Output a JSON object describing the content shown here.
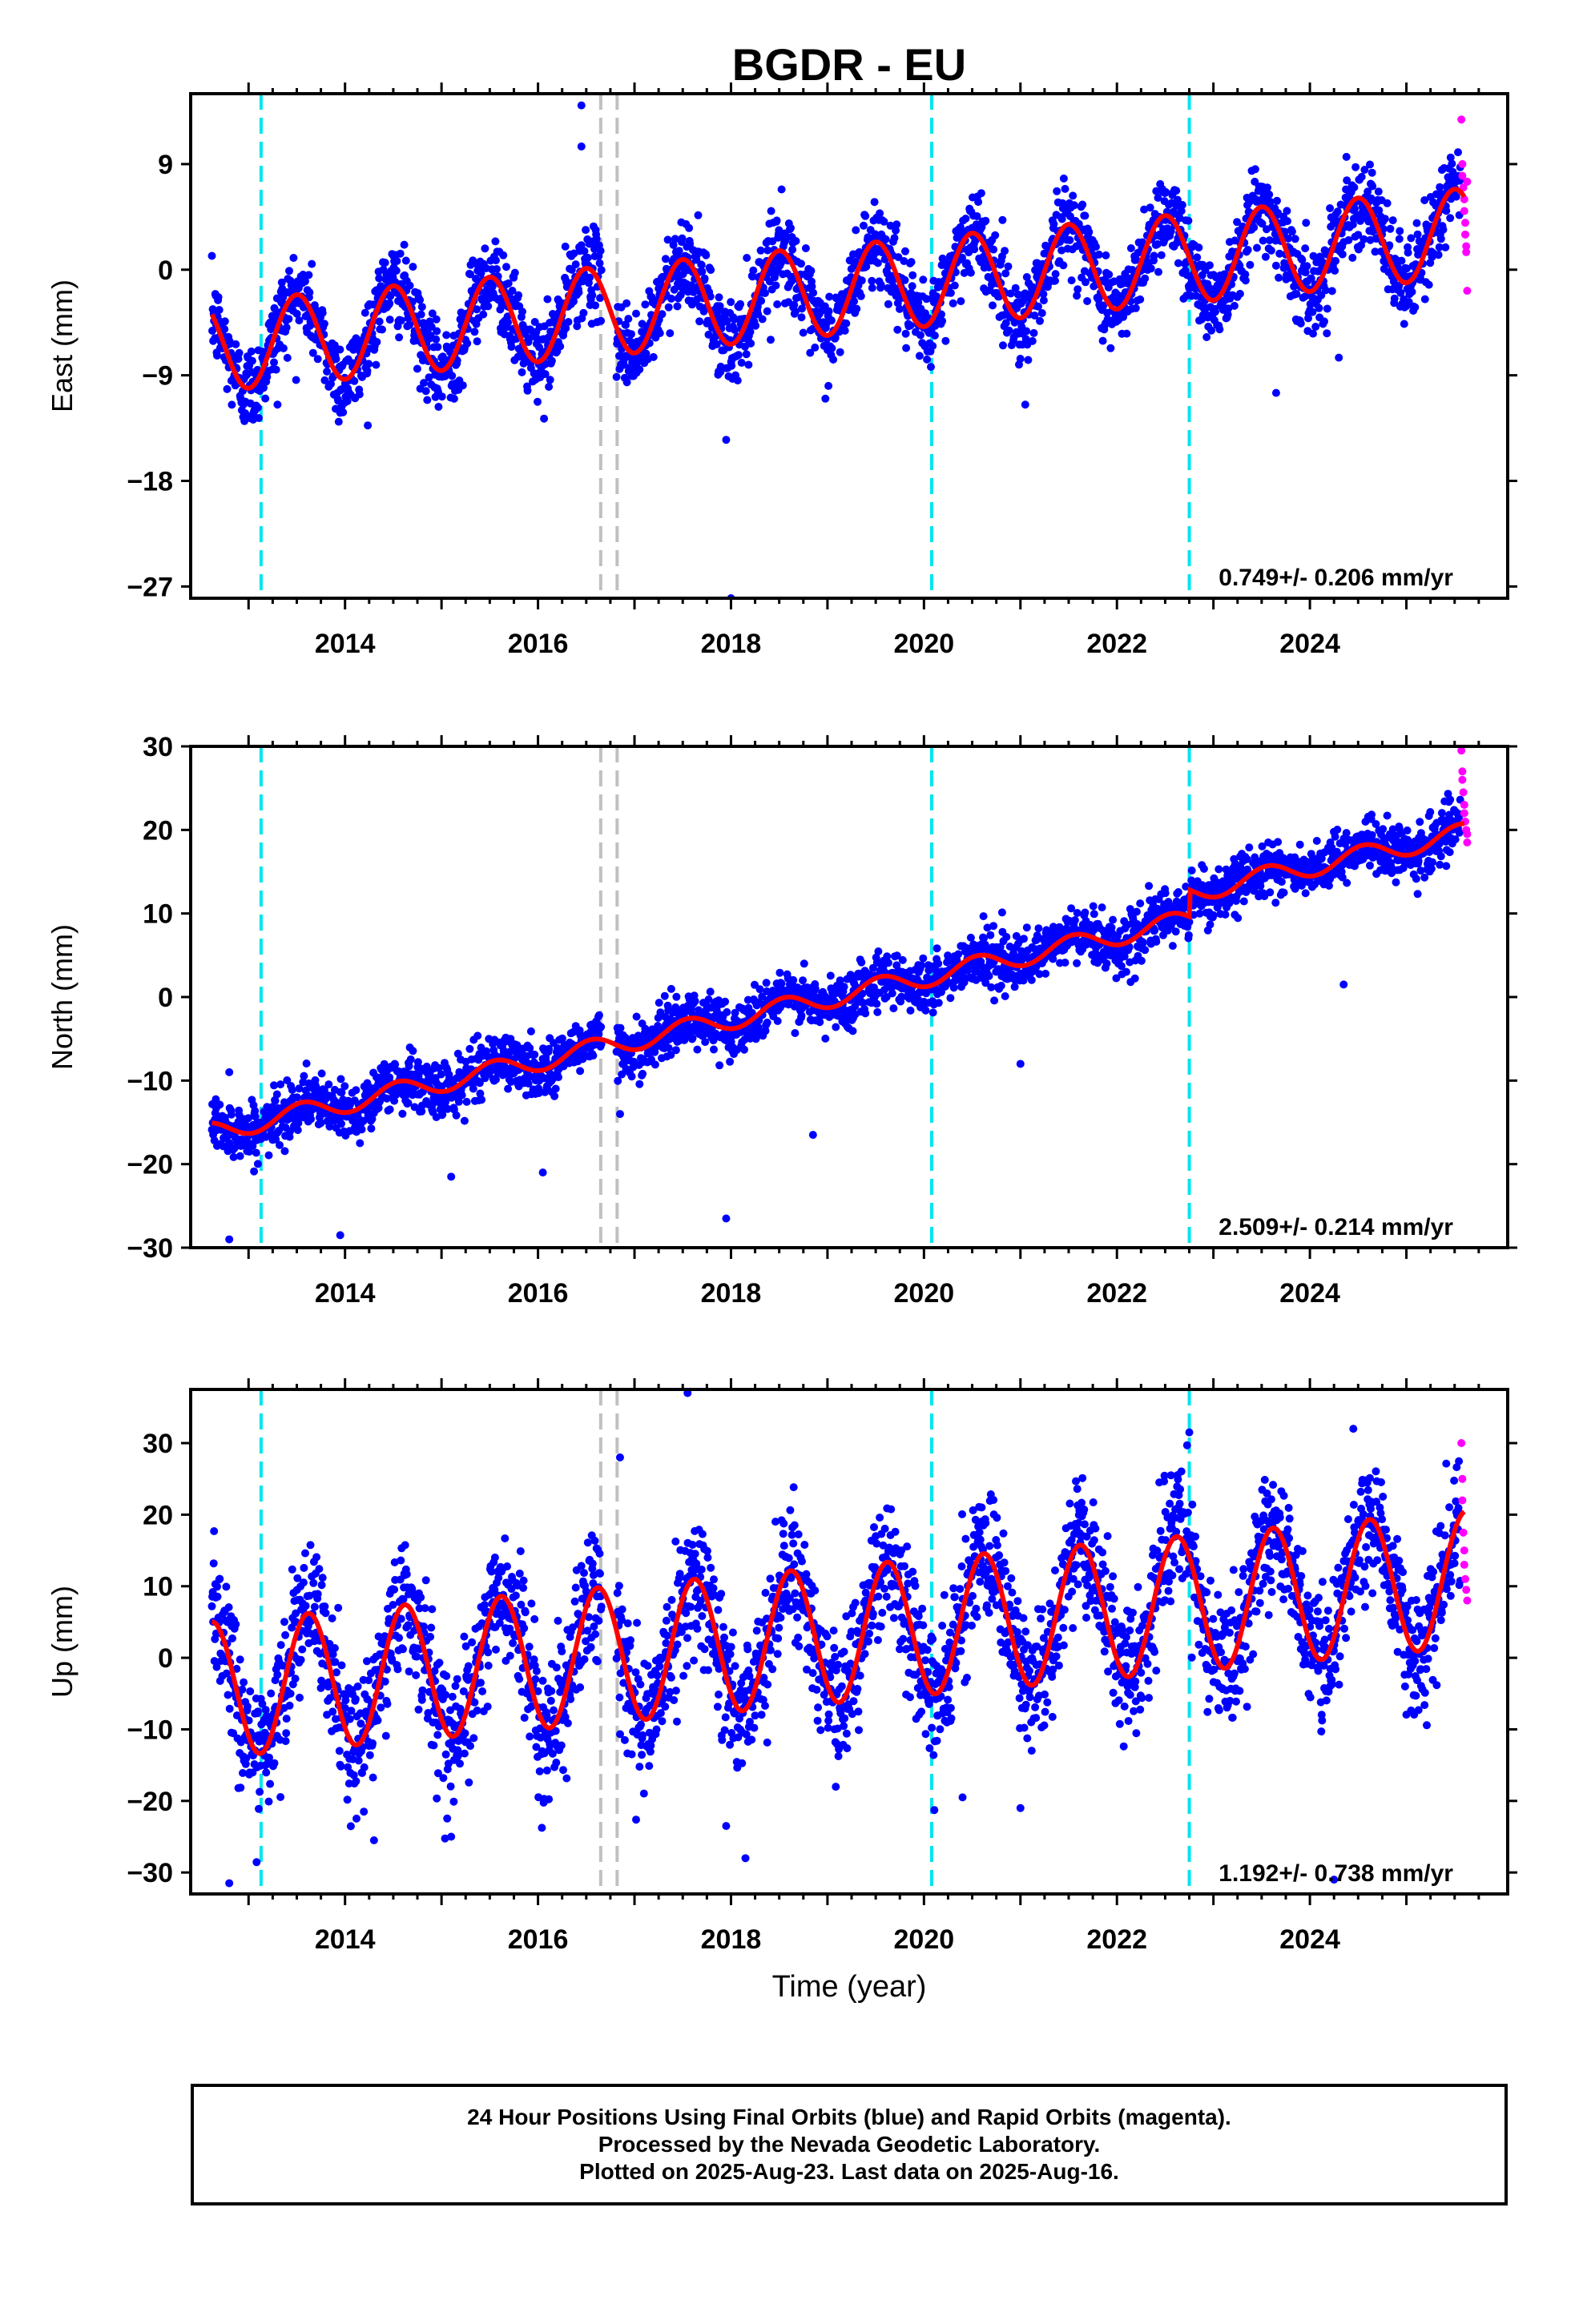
{
  "title": "BGDR - EU",
  "colors": {
    "final_orbits": "#0000ff",
    "rapid_orbits": "#ff00ff",
    "model_fit": "#ff0000",
    "equipment_change": "#00e5ee",
    "other_event": "#c0c0c0",
    "frame": "#000000"
  },
  "chart_data": [
    {
      "type": "scatter",
      "title": "BGDR - EU",
      "xlabel": "",
      "ylabel": "East (mm)",
      "xlim": [
        2012.4,
        2026.05
      ],
      "ylim": [
        -28,
        15
      ],
      "x_ticks": [
        2014,
        2016,
        2018,
        2020,
        2022,
        2024
      ],
      "y_ticks": [
        -27,
        -18,
        -9,
        0,
        9
      ],
      "grid": false,
      "rate_label": "0.749+/- 0.206 mm/yr",
      "model": {
        "start_value": -6.6,
        "rate_mm_per_yr": 0.749,
        "annual_amplitude": 3.8,
        "peak_year_fraction": 0.5,
        "step_at_2022_75": 0.0
      },
      "scatter_sigma": 1.8,
      "outliers": [
        [
          2016.45,
          14
        ],
        [
          2016.45,
          10.5
        ],
        [
          2017.95,
          -14.5
        ],
        [
          2018.0,
          -28
        ],
        [
          2021.05,
          -11.5
        ],
        [
          2023.65,
          -10.5
        ],
        [
          2024.3,
          -7.5
        ],
        [
          2013.95,
          -12.2
        ],
        [
          2013.3,
          -11.5
        ]
      ],
      "rapid_points": [
        [
          2025.57,
          12.8
        ],
        [
          2025.58,
          9
        ],
        [
          2025.58,
          8
        ],
        [
          2025.59,
          7
        ],
        [
          2025.6,
          6
        ],
        [
          2025.6,
          5
        ],
        [
          2025.61,
          4
        ],
        [
          2025.61,
          3
        ],
        [
          2025.62,
          2
        ],
        [
          2025.62,
          1.5
        ],
        [
          2025.63,
          7.5
        ],
        [
          2025.63,
          -1.8
        ]
      ],
      "vlines_cyan": [
        2013.13,
        2020.08,
        2022.75
      ],
      "vlines_gray": [
        2016.65,
        2016.82
      ]
    },
    {
      "type": "scatter",
      "xlabel": "",
      "ylabel": "North (mm)",
      "xlim": [
        2012.4,
        2026.05
      ],
      "ylim": [
        -30,
        30
      ],
      "x_ticks": [
        2014,
        2016,
        2018,
        2020,
        2022,
        2024
      ],
      "y_ticks": [
        -30,
        -20,
        -10,
        0,
        10,
        20,
        30
      ],
      "grid": false,
      "rate_label": "2.509+/- 0.214 mm/yr",
      "model": {
        "start_value": -16.2,
        "rate_mm_per_yr": 2.509,
        "annual_amplitude": 1.2,
        "peak_year_fraction": 0.55,
        "step_at_2022_75": 3.2
      },
      "scatter_sigma": 1.6,
      "outliers": [
        [
          2012.8,
          -29
        ],
        [
          2012.8,
          -9
        ],
        [
          2013.95,
          -28.5
        ],
        [
          2015.1,
          -21.5
        ],
        [
          2016.05,
          -21
        ],
        [
          2017.95,
          -26.5
        ],
        [
          2018.85,
          -16.5
        ],
        [
          2021.0,
          -8
        ],
        [
          2024.35,
          1.5
        ],
        [
          2016.85,
          -14
        ]
      ],
      "rapid_points": [
        [
          2025.57,
          29.5
        ],
        [
          2025.58,
          27
        ],
        [
          2025.58,
          26
        ],
        [
          2025.59,
          24.5
        ],
        [
          2025.6,
          23
        ],
        [
          2025.6,
          22
        ],
        [
          2025.61,
          21
        ],
        [
          2025.62,
          20
        ],
        [
          2025.63,
          19.5
        ],
        [
          2025.63,
          18.5
        ]
      ],
      "vlines_cyan": [
        2013.13,
        2020.08,
        2022.75
      ],
      "vlines_gray": [
        2016.65,
        2016.82
      ]
    },
    {
      "type": "scatter",
      "xlabel": "Time (year)",
      "ylabel": "Up (mm)",
      "xlim": [
        2012.4,
        2026.05
      ],
      "ylim": [
        -33,
        37.5
      ],
      "x_ticks": [
        2014,
        2016,
        2018,
        2020,
        2022,
        2024
      ],
      "y_ticks": [
        -30,
        -20,
        -10,
        0,
        10,
        20,
        30
      ],
      "grid": false,
      "rate_label": "1.192+/- 0.738 mm/yr",
      "model": {
        "start_value": -4.5,
        "rate_mm_per_yr": 1.192,
        "annual_amplitude": 9.5,
        "peak_year_fraction": 0.62,
        "step_at_2022_75": 0.0
      },
      "scatter_sigma": 4.5,
      "outliers": [
        [
          2012.8,
          -31.5
        ],
        [
          2016.85,
          28
        ],
        [
          2017.55,
          37
        ],
        [
          2017.95,
          -23.5
        ],
        [
          2018.15,
          -28
        ],
        [
          2014.3,
          -25.5
        ],
        [
          2015.1,
          -25
        ],
        [
          2022.75,
          31.5
        ],
        [
          2024.45,
          32
        ],
        [
          2024.25,
          -31
        ],
        [
          2020.4,
          -19.5
        ],
        [
          2021.0,
          -21
        ]
      ],
      "rapid_points": [
        [
          2025.57,
          30
        ],
        [
          2025.58,
          25
        ],
        [
          2025.58,
          22
        ],
        [
          2025.59,
          17.5
        ],
        [
          2025.6,
          15
        ],
        [
          2025.6,
          13
        ],
        [
          2025.61,
          11
        ],
        [
          2025.62,
          9.5
        ],
        [
          2025.63,
          8
        ]
      ],
      "vlines_cyan": [
        2013.13,
        2020.08,
        2022.75
      ],
      "vlines_gray": [
        2016.65,
        2016.82
      ]
    }
  ],
  "footer": {
    "line1": "24 Hour Positions Using Final Orbits (blue) and Rapid Orbits (magenta).",
    "line2": "Processed by the Nevada Geodetic Laboratory.",
    "line3": "Plotted on 2025-Aug-23. Last data on 2025-Aug-16."
  }
}
